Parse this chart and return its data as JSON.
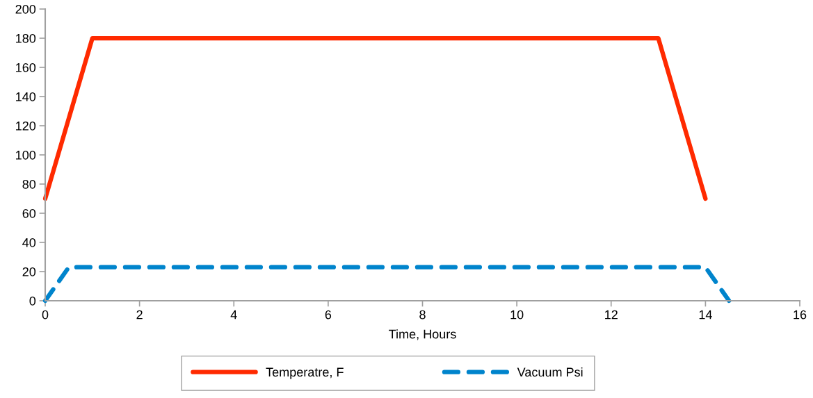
{
  "chart_data": {
    "type": "line",
    "xlabel": "Time, Hours",
    "xlim": [
      0,
      16
    ],
    "xticks": [
      0,
      2,
      4,
      6,
      8,
      10,
      12,
      14,
      16
    ],
    "ylim": [
      0,
      200
    ],
    "yticks": [
      0,
      20,
      40,
      60,
      80,
      100,
      120,
      140,
      160,
      180,
      200
    ],
    "grid": false,
    "legend": "bottom",
    "marker": "none",
    "series": [
      {
        "name": "Temperatre, F",
        "color": "#ff2a00",
        "line_style": "solid",
        "x": [
          0,
          1,
          13,
          14
        ],
        "values": [
          70,
          180,
          180,
          70
        ]
      },
      {
        "name": "Vacuum Psi",
        "color": "#0084cc",
        "line_style": "dashed",
        "x": [
          0,
          0.5,
          14,
          14.5
        ],
        "values": [
          0,
          23,
          23,
          0
        ]
      }
    ]
  }
}
